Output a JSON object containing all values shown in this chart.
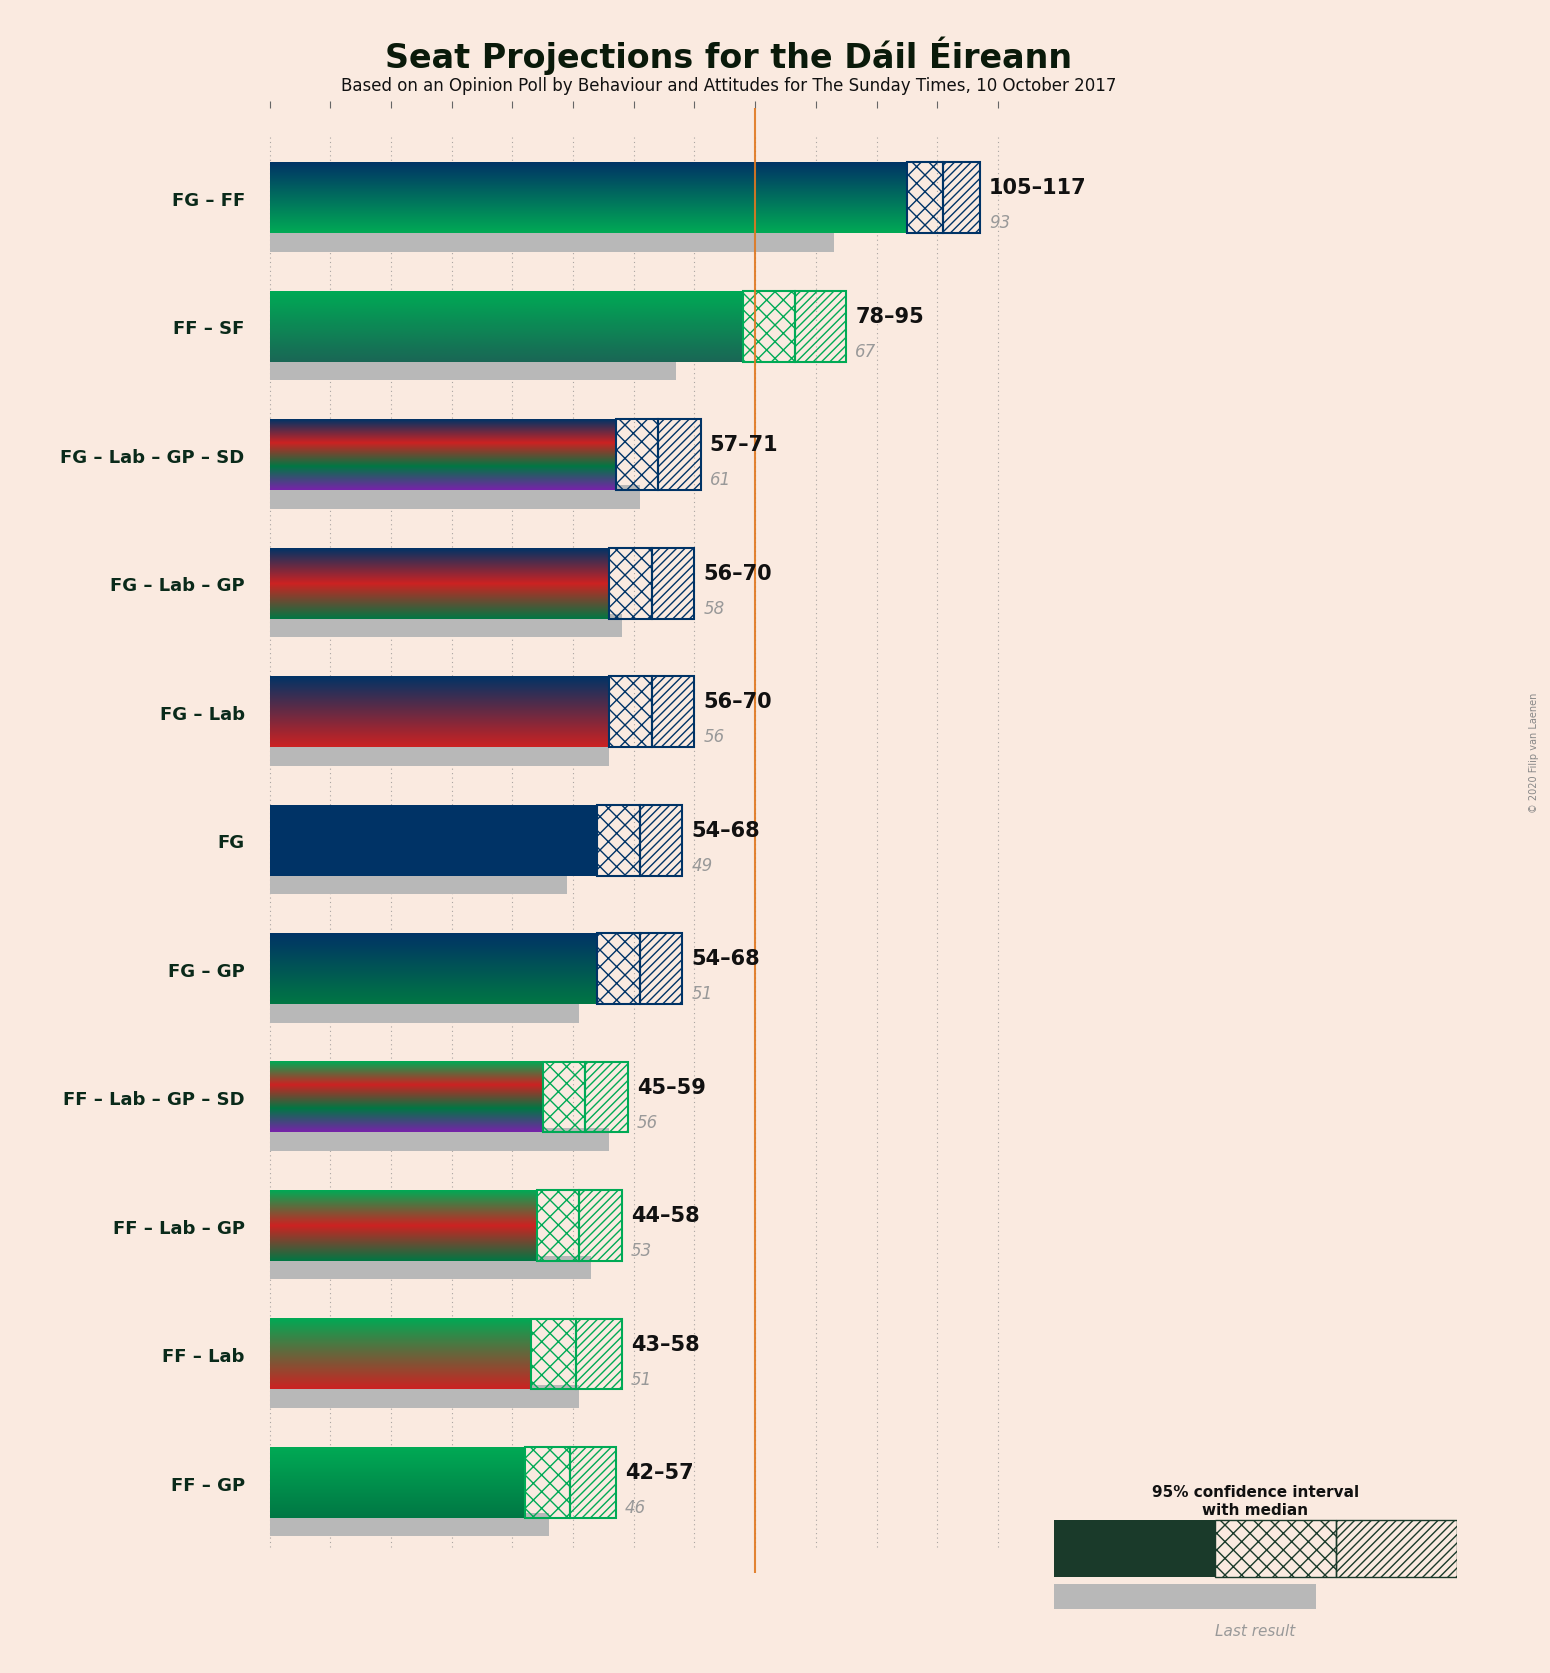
{
  "title": "Seat Projections for the Dáil Éireann",
  "subtitle": "Based on an Opinion Poll by Behaviour and Attitudes for The Sunday Times, 10 October 2017",
  "copyright": "© 2020 Filip van Laenen",
  "background_color": "#faeae0",
  "majority_line": 80,
  "majority_line_color": "#e07820",
  "x_max": 120,
  "x_ticks": [
    0,
    10,
    20,
    30,
    40,
    50,
    60,
    70,
    80,
    90,
    100,
    110,
    120
  ],
  "coalitions": [
    {
      "label": "FG – FF",
      "ci_low": 105,
      "ci_high": 117,
      "last_result": 93,
      "party_colors": [
        "#003366",
        "#00aa55"
      ],
      "label_range": "105–117",
      "label_last": "93"
    },
    {
      "label": "FF – SF",
      "ci_low": 78,
      "ci_high": 95,
      "last_result": 67,
      "party_colors": [
        "#00aa55",
        "#1a6655"
      ],
      "label_range": "78–95",
      "label_last": "67"
    },
    {
      "label": "FG – Lab – GP – SD",
      "ci_low": 57,
      "ci_high": 71,
      "last_result": 61,
      "party_colors": [
        "#003366",
        "#cc2222",
        "#007744",
        "#7722aa"
      ],
      "label_range": "57–71",
      "label_last": "61"
    },
    {
      "label": "FG – Lab – GP",
      "ci_low": 56,
      "ci_high": 70,
      "last_result": 58,
      "party_colors": [
        "#003366",
        "#cc2222",
        "#007744"
      ],
      "label_range": "56–70",
      "label_last": "58"
    },
    {
      "label": "FG – Lab",
      "ci_low": 56,
      "ci_high": 70,
      "last_result": 56,
      "party_colors": [
        "#003366",
        "#cc2222"
      ],
      "label_range": "56–70",
      "label_last": "56"
    },
    {
      "label": "FG",
      "ci_low": 54,
      "ci_high": 68,
      "last_result": 49,
      "party_colors": [
        "#003366"
      ],
      "label_range": "54–68",
      "label_last": "49"
    },
    {
      "label": "FG – GP",
      "ci_low": 54,
      "ci_high": 68,
      "last_result": 51,
      "party_colors": [
        "#003366",
        "#007744"
      ],
      "label_range": "54–68",
      "label_last": "51"
    },
    {
      "label": "FF – Lab – GP – SD",
      "ci_low": 45,
      "ci_high": 59,
      "last_result": 56,
      "party_colors": [
        "#00aa55",
        "#cc2222",
        "#007744",
        "#7722aa"
      ],
      "label_range": "45–59",
      "label_last": "56"
    },
    {
      "label": "FF – Lab – GP",
      "ci_low": 44,
      "ci_high": 58,
      "last_result": 53,
      "party_colors": [
        "#00aa55",
        "#cc2222",
        "#007744"
      ],
      "label_range": "44–58",
      "label_last": "53"
    },
    {
      "label": "FF – Lab",
      "ci_low": 43,
      "ci_high": 58,
      "last_result": 51,
      "party_colors": [
        "#00aa55",
        "#cc2222"
      ],
      "label_range": "43–58",
      "label_last": "51"
    },
    {
      "label": "FF – GP",
      "ci_low": 42,
      "ci_high": 57,
      "last_result": 46,
      "party_colors": [
        "#00aa55",
        "#007744"
      ],
      "label_range": "42–57",
      "label_last": "46"
    }
  ]
}
